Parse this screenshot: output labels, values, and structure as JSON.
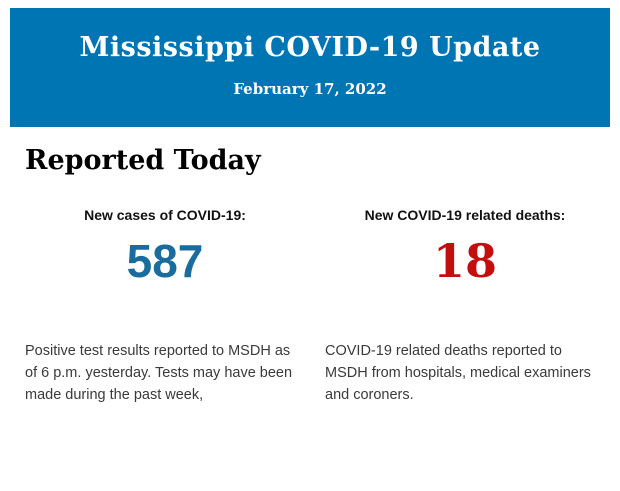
{
  "header": {
    "title": "Mississippi COVID-19 Update",
    "date": "February 17, 2022",
    "background_color": "#0075B4",
    "text_color": "#FFFFFF"
  },
  "section": {
    "heading": "Reported Today"
  },
  "stats": {
    "cases": {
      "label": "New cases of COVID-19:",
      "value": "587",
      "value_color": "#1A6C9E",
      "description": "Positive test results reported to MSDH as of 6 p.m. yesterday. Tests may have been made during the past week,"
    },
    "deaths": {
      "label": "New COVID-19 related deaths:",
      "value": "18",
      "value_color": "#C40D0D",
      "description": "COVID-19 related deaths reported to MSDH from hospitals, medical examiners and coroners."
    }
  }
}
